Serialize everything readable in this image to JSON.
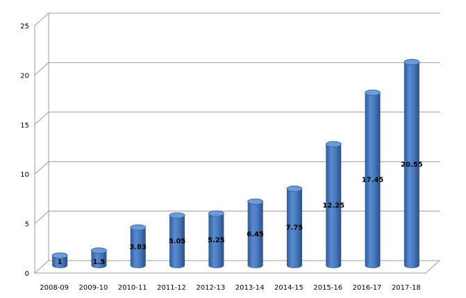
{
  "chart_data": {
    "type": "bar",
    "style": "3d-cylinder",
    "categories": [
      "2008-09",
      "2009-10",
      "2010-11",
      "2011-12",
      "2012-13",
      "2013-14",
      "2014-15",
      "2015-16",
      "2016-17",
      "2017-18"
    ],
    "values": [
      1,
      1.5,
      3.83,
      5.05,
      5.25,
      6.45,
      7.75,
      12.25,
      17.45,
      20.55
    ],
    "data_labels": [
      "1",
      "1.5",
      "3.83",
      "5.05",
      "5.25",
      "6.45",
      "7.75",
      "12.25",
      "17.45",
      "20.55"
    ],
    "yticks": [
      0,
      5,
      10,
      15,
      20,
      25
    ],
    "ylim": [
      0,
      25
    ],
    "grid": true,
    "legend": "none",
    "colors": {
      "bar": "#4a7cc0",
      "bar_dark": "#2f5b97",
      "bar_top": "#6d9bd6",
      "grid": "#9a9a9a"
    }
  }
}
